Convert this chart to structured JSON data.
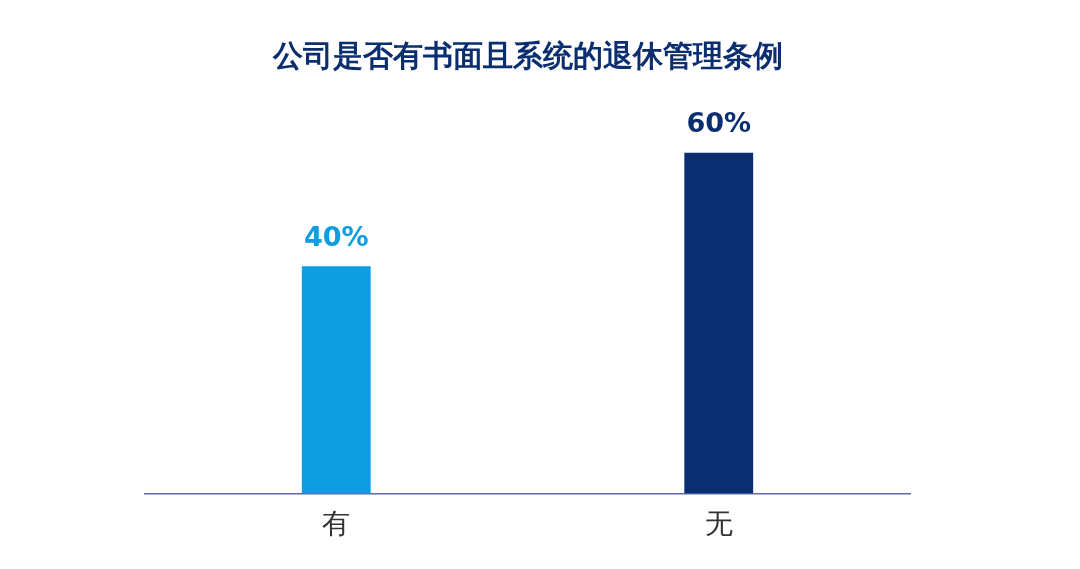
{
  "chart_data": {
    "type": "bar",
    "title": "公司是否有书面且系统的退休管理条例",
    "categories": [
      "有",
      "无"
    ],
    "values": [
      40,
      60
    ],
    "colors": [
      "#0e9de0",
      "#0b2e70"
    ],
    "value_labels": [
      "40%",
      "60%"
    ],
    "legend": false,
    "grid": false
  }
}
